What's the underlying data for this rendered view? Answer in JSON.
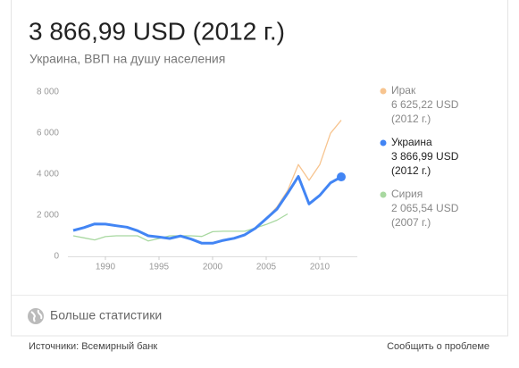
{
  "header": {
    "title": "3 866,99 USD (2012 г.)",
    "subtitle": "Украина, ВВП на душу населения"
  },
  "chart_data": {
    "type": "line",
    "x": [
      1987,
      1988,
      1989,
      1990,
      1991,
      1992,
      1993,
      1994,
      1995,
      1996,
      1997,
      1998,
      1999,
      2000,
      2001,
      2002,
      2003,
      2004,
      2005,
      2006,
      2007,
      2008,
      2009,
      2010,
      2011,
      2012
    ],
    "xlim": [
      1986.5,
      2013.5
    ],
    "xticks": [
      1990,
      1995,
      2000,
      2005,
      2010
    ],
    "ylim": [
      0,
      8000
    ],
    "yticks": [
      0,
      {
        "value": 2000,
        "label": "2 000"
      },
      {
        "value": 4000,
        "label": "4 000"
      },
      {
        "value": 6000,
        "label": "6 000"
      },
      {
        "value": 8000,
        "label": "8 000"
      }
    ],
    "grid": false,
    "series": [
      {
        "name": "Ирак",
        "color": "#f7c48f",
        "legend_value": "6 625,22 USD",
        "legend_year": "(2012 г.)",
        "values": [
          null,
          null,
          null,
          null,
          null,
          null,
          null,
          null,
          null,
          null,
          null,
          null,
          null,
          null,
          null,
          null,
          null,
          1390,
          1850,
          2400,
          3200,
          4470,
          3700,
          4470,
          5990,
          6625.22
        ]
      },
      {
        "name": "Украина",
        "color": "#4285f4",
        "legend_value": "3 866,99 USD",
        "legend_year": "(2012 г.)",
        "end_marker": true,
        "values": [
          1260,
          1400,
          1580,
          1570,
          1490,
          1420,
          1250,
          1000,
          940,
          870,
          990,
          840,
          640,
          640,
          780,
          880,
          1050,
          1370,
          1830,
          2300,
          3070,
          3890,
          2550,
          2970,
          3580,
          3866.99
        ]
      },
      {
        "name": "Сирия",
        "color": "#a8d8a0",
        "legend_value": "2 065,54 USD",
        "legend_year": "(2007 г.)",
        "values": [
          1000,
          900,
          800,
          960,
          1000,
          1000,
          1000,
          750,
          870,
          1000,
          1000,
          1000,
          970,
          1200,
          1220,
          1220,
          1220,
          1380,
          1550,
          1760,
          2065.54,
          null,
          null,
          null,
          null,
          null
        ]
      }
    ]
  },
  "footer": {
    "more": "Больше статистики",
    "source": "Источники: Всемирный банк",
    "report": "Сообщить о проблеме"
  }
}
